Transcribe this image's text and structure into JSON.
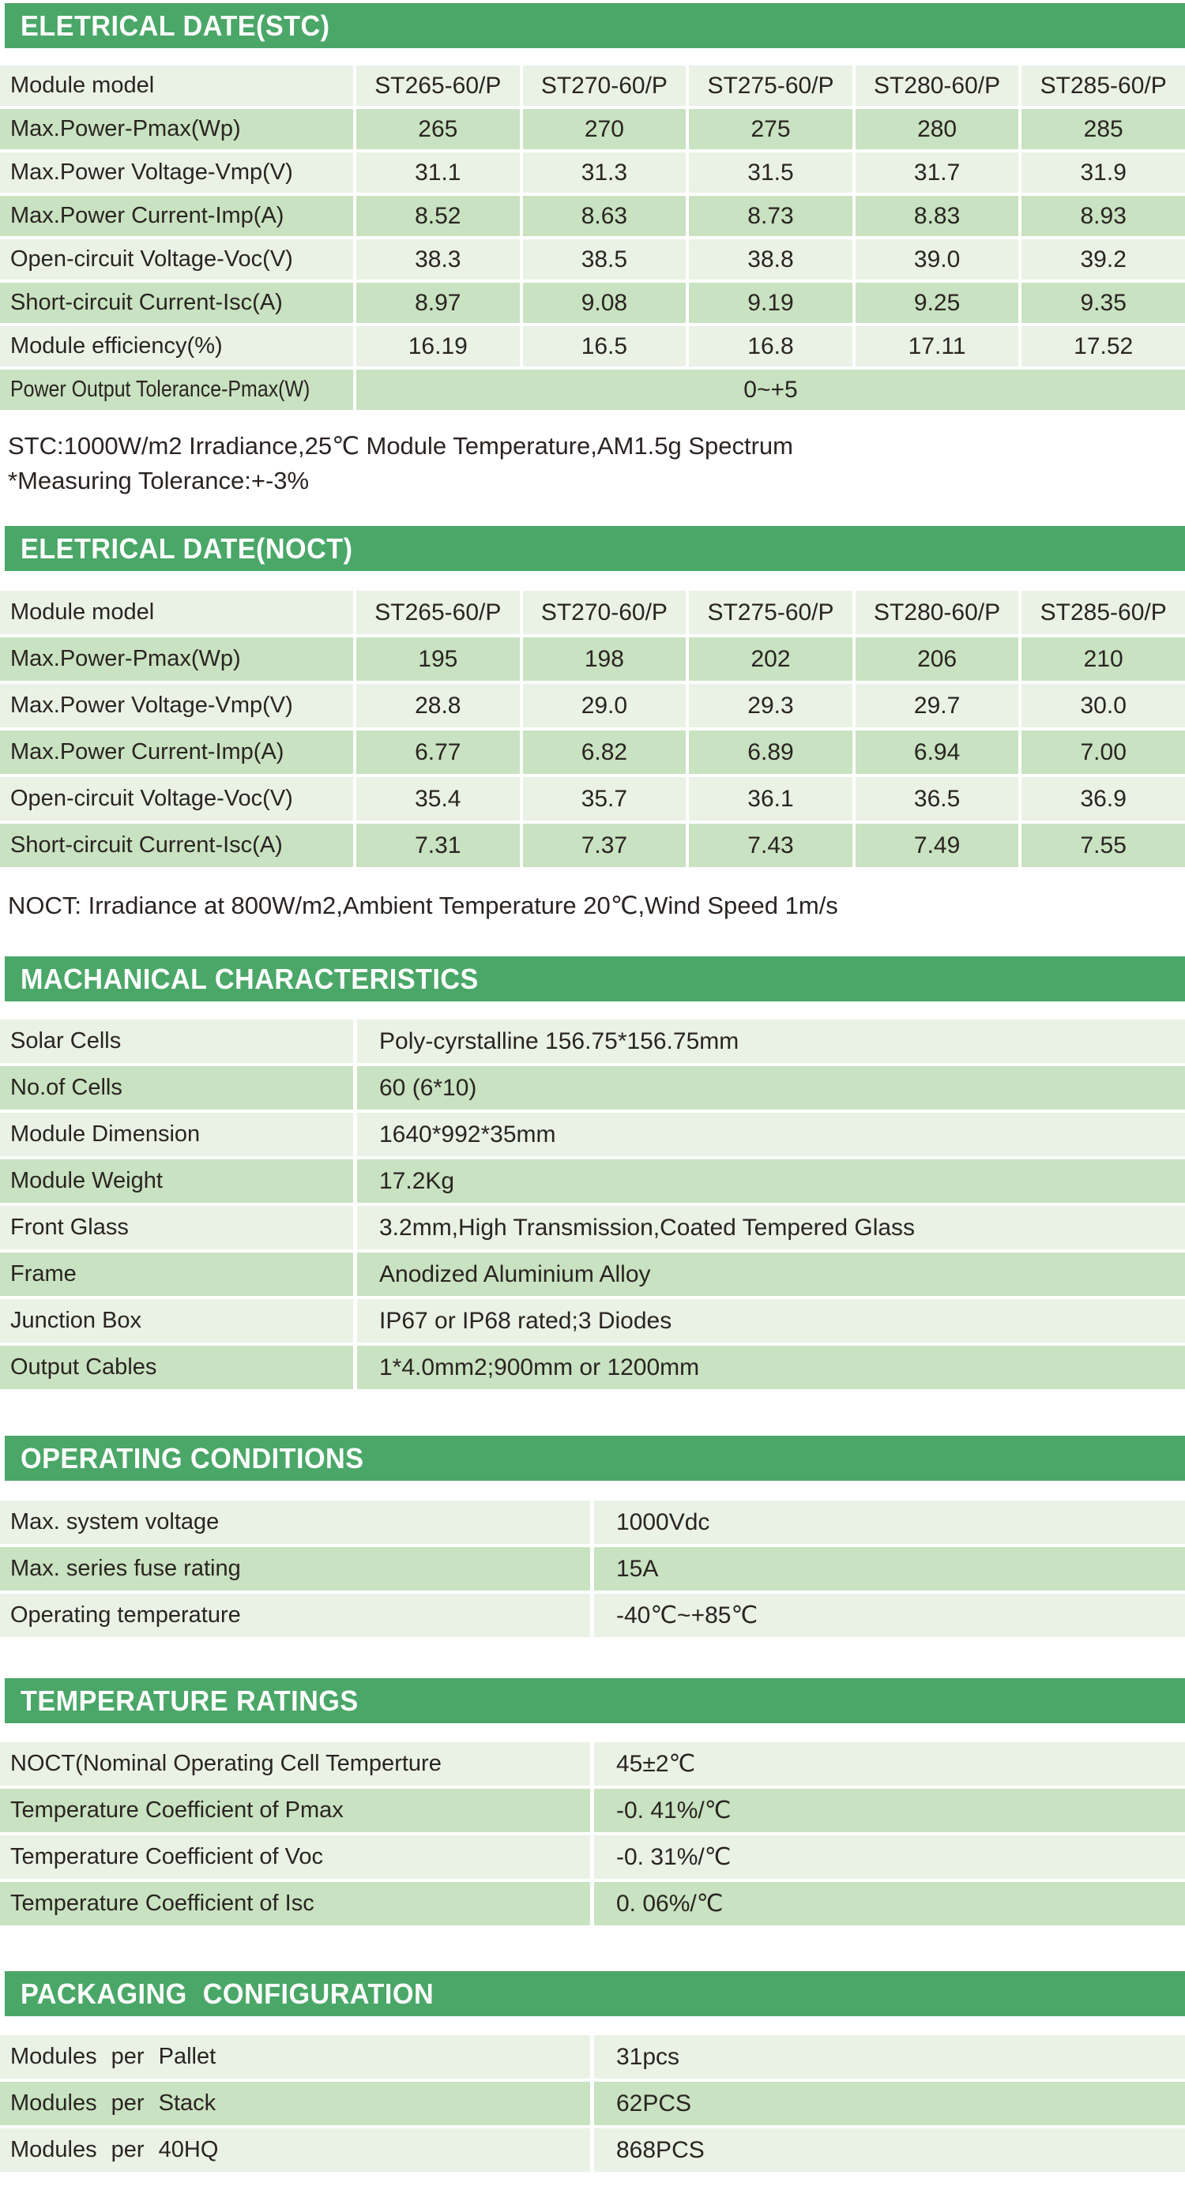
{
  "colors": {
    "banner_green": "#4AA768",
    "row_dark_green": "#C9E2C1",
    "row_light_green": "#E9F2E5",
    "banner_text": "#FFFFFF",
    "body_text": "#2A2422"
  },
  "stc": {
    "title": "ELETRICAL DATE(STC)",
    "row_header_label": "Module model",
    "columns": [
      "ST265-60/P",
      "ST270-60/P",
      "ST275-60/P",
      "ST280-60/P",
      "ST285-60/P"
    ],
    "rows": [
      {
        "label": "Max.Power-Pmax(Wp)",
        "values": [
          "265",
          "270",
          "275",
          "280",
          "285"
        ]
      },
      {
        "label": "Max.Power Voltage-Vmp(V)",
        "values": [
          "31.1",
          "31.3",
          "31.5",
          "31.7",
          "31.9"
        ]
      },
      {
        "label": "Max.Power Current-Imp(A)",
        "values": [
          "8.52",
          "8.63",
          "8.73",
          "8.83",
          "8.93"
        ]
      },
      {
        "label": "Open-circuit Voltage-Voc(V)",
        "values": [
          "38.3",
          "38.5",
          "38.8",
          "39.0",
          "39.2"
        ]
      },
      {
        "label": "Short-circuit Current-Isc(A)",
        "values": [
          "8.97",
          "9.08",
          "9.19",
          "9.25",
          "9.35"
        ]
      },
      {
        "label": "Module efficiency(%)",
        "values": [
          "16.19",
          "16.5",
          "16.8",
          "17.11",
          "17.52"
        ]
      }
    ],
    "tolerance_row": {
      "label": "Power Output Tolerance-Pmax(W)",
      "value": "0~+5"
    },
    "note_line1": "STC:1000W/m2 Irradiance,25℃ Module Temperature,AM1.5g Spectrum",
    "note_line2": "*Measuring Tolerance:+-3%"
  },
  "noct": {
    "title": "ELETRICAL DATE(NOCT)",
    "row_header_label": "Module model",
    "columns": [
      "ST265-60/P",
      "ST270-60/P",
      "ST275-60/P",
      "ST280-60/P",
      "ST285-60/P"
    ],
    "rows": [
      {
        "label": "Max.Power-Pmax(Wp)",
        "values": [
          "195",
          "198",
          "202",
          "206",
          "210"
        ]
      },
      {
        "label": "Max.Power Voltage-Vmp(V)",
        "values": [
          "28.8",
          "29.0",
          "29.3",
          "29.7",
          "30.0"
        ]
      },
      {
        "label": "Max.Power Current-Imp(A)",
        "values": [
          "6.77",
          "6.82",
          "6.89",
          "6.94",
          "7.00"
        ]
      },
      {
        "label": "Open-circuit Voltage-Voc(V)",
        "values": [
          "35.4",
          "35.7",
          "36.1",
          "36.5",
          "36.9"
        ]
      },
      {
        "label": "Short-circuit Current-Isc(A)",
        "values": [
          "7.31",
          "7.37",
          "7.43",
          "7.49",
          "7.55"
        ]
      }
    ],
    "note": "NOCT: Irradiance at 800W/m2,Ambient Temperature 20℃,Wind Speed 1m/s"
  },
  "mechanical": {
    "title": "MACHANICAL CHARACTERISTICS",
    "rows": [
      {
        "label": "Solar Cells",
        "value": "Poly-cyrstalline 156.75*156.75mm"
      },
      {
        "label": "No.of Cells",
        "value": "60 (6*10)"
      },
      {
        "label": "Module Dimension",
        "value": "1640*992*35mm"
      },
      {
        "label": "Module Weight",
        "value": "17.2Kg"
      },
      {
        "label": "Front Glass",
        "value": "3.2mm,High Transmission,Coated Tempered Glass"
      },
      {
        "label": "Frame",
        "value": "Anodized Aluminium Alloy"
      },
      {
        "label": "Junction Box",
        "value": "IP67 or IP68 rated;3 Diodes"
      },
      {
        "label": "Output Cables",
        "value": "1*4.0mm2;900mm or 1200mm"
      }
    ]
  },
  "operating": {
    "title": "OPERATING CONDITIONS",
    "rows": [
      {
        "label": "Max. system voltage",
        "value": "1000Vdc"
      },
      {
        "label": "Max. series fuse rating",
        "value": "15A"
      },
      {
        "label": "Operating temperature",
        "value": "-40℃~+85℃"
      }
    ]
  },
  "temperature": {
    "title": "TEMPERATURE RATINGS",
    "rows": [
      {
        "label": "NOCT(Nominal Operating Cell Temperture",
        "value": "45±2℃"
      },
      {
        "label": "Temperature Coefficient of Pmax",
        "value": "-0. 41%/℃"
      },
      {
        "label": "Temperature Coefficient of Voc",
        "value": "-0. 31%/℃"
      },
      {
        "label": "Temperature Coefficient of Isc",
        "value": "0. 06%/℃"
      }
    ]
  },
  "packaging": {
    "title": "PACKAGING  CONFIGURATION",
    "rows": [
      {
        "label": "Modules per Pallet",
        "value": "31pcs"
      },
      {
        "label": "Modules per Stack",
        "value": "62PCS"
      },
      {
        "label": "Modules per 40HQ",
        "value": "868PCS"
      }
    ]
  }
}
